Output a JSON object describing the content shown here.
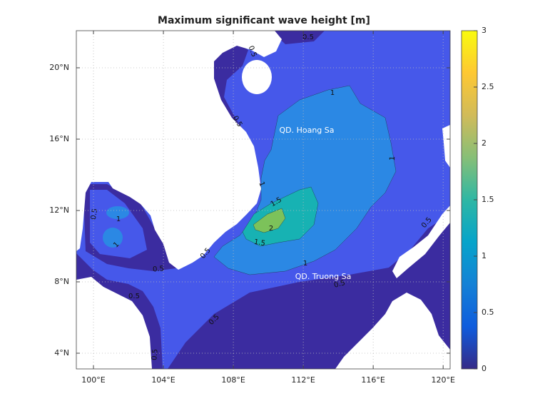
{
  "title": "Maximum significant wave height [m]",
  "axes": {
    "xlim": [
      99.02,
      120.4
    ],
    "ylim": [
      3.12,
      22.08
    ],
    "xticks": [
      {
        "value": 100,
        "label": "100°E"
      },
      {
        "value": 104,
        "label": "104°E"
      },
      {
        "value": 108,
        "label": "108°E"
      },
      {
        "value": 112,
        "label": "112°E"
      },
      {
        "value": 116,
        "label": "116°E"
      },
      {
        "value": 120,
        "label": "120°E"
      }
    ],
    "yticks": [
      {
        "value": 4,
        "label": "4°N"
      },
      {
        "value": 8,
        "label": "8°N"
      },
      {
        "value": 12,
        "label": "12°N"
      },
      {
        "value": 16,
        "label": "16°N"
      },
      {
        "value": 20,
        "label": "20°N"
      }
    ],
    "grid": true
  },
  "colorbar": {
    "lim": [
      0,
      3
    ],
    "ticks": [
      0,
      0.5,
      1,
      1.5,
      2,
      2.5,
      3
    ]
  },
  "contour_labels": [
    0.5,
    0.5,
    0.5,
    1,
    1,
    1,
    1.5,
    2,
    1.5,
    1,
    0.5,
    0.5,
    0.5,
    0.5,
    0.5,
    0.5,
    0.5,
    1,
    1,
    0.5
  ],
  "places": [
    "QD. Hoang Sa",
    "QD. Truong Sa"
  ]
}
